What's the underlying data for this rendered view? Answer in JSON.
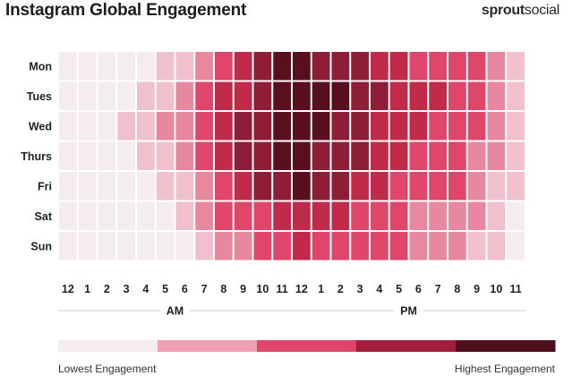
{
  "header": {
    "title": "Instagram Global Engagement",
    "brand_bold": "sprout",
    "brand_rest": "social"
  },
  "palette": [
    "#f4ecef",
    "#f0c0cc",
    "#e8889e",
    "#e0466a",
    "#c22a4a",
    "#8e1e36",
    "#5a0f1e"
  ],
  "chart_data": {
    "type": "heatmap",
    "title": "Instagram Global Engagement",
    "rows": [
      "Mon",
      "Tues",
      "Wed",
      "Thurs",
      "Fri",
      "Sat",
      "Sun"
    ],
    "columns": [
      "12",
      "1",
      "2",
      "3",
      "4",
      "5",
      "6",
      "7",
      "8",
      "9",
      "10",
      "11",
      "12",
      "1",
      "2",
      "3",
      "4",
      "5",
      "6",
      "7",
      "8",
      "9",
      "10",
      "11"
    ],
    "period_labels": [
      "AM",
      "PM"
    ],
    "values": [
      [
        0,
        0,
        0,
        0,
        0,
        1,
        1,
        2,
        3,
        4,
        5,
        6,
        6,
        5,
        5,
        5,
        4,
        4,
        3,
        3,
        3,
        3,
        2,
        1
      ],
      [
        0,
        0,
        0,
        0,
        1,
        1,
        2,
        3,
        4,
        4,
        5,
        6,
        6,
        6,
        6,
        5,
        5,
        4,
        4,
        4,
        3,
        3,
        2,
        1
      ],
      [
        0,
        0,
        0,
        1,
        1,
        2,
        2,
        3,
        4,
        5,
        5,
        6,
        6,
        6,
        5,
        5,
        4,
        4,
        4,
        3,
        3,
        3,
        2,
        1
      ],
      [
        0,
        0,
        0,
        0,
        1,
        1,
        2,
        3,
        4,
        5,
        5,
        6,
        6,
        5,
        5,
        5,
        4,
        4,
        3,
        3,
        3,
        2,
        2,
        1
      ],
      [
        0,
        0,
        0,
        0,
        0,
        1,
        1,
        2,
        3,
        4,
        5,
        5,
        6,
        5,
        5,
        4,
        4,
        3,
        3,
        3,
        3,
        2,
        1,
        1
      ],
      [
        0,
        0,
        0,
        0,
        0,
        0,
        1,
        2,
        3,
        3,
        3,
        4,
        4,
        4,
        4,
        3,
        3,
        3,
        2,
        2,
        2,
        2,
        1,
        0
      ],
      [
        0,
        0,
        0,
        0,
        0,
        0,
        0,
        1,
        2,
        2,
        3,
        3,
        4,
        3,
        3,
        3,
        3,
        3,
        2,
        2,
        2,
        1,
        1,
        0
      ]
    ],
    "legend": {
      "colors": [
        "#f4ecef",
        "#eea0b4",
        "#e0466a",
        "#a31e3c",
        "#4e0e1c"
      ],
      "low_label": "Lowest Engagement",
      "high_label": "Highest Engagement"
    }
  }
}
